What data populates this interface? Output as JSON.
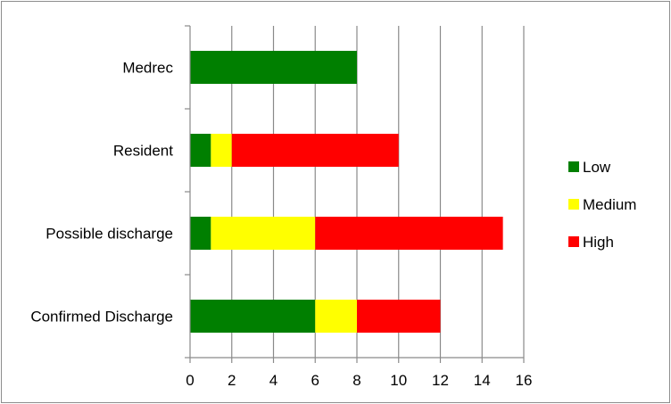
{
  "chart_data": {
    "type": "bar",
    "orientation": "horizontal",
    "stacked": true,
    "title": "",
    "xlabel": "",
    "ylabel": "",
    "categories": [
      "Medrec",
      "Resident",
      "Possible discharge",
      "Confirmed Discharge"
    ],
    "series": [
      {
        "name": "Low",
        "color": "#007f00",
        "values": [
          8,
          1,
          1,
          6
        ]
      },
      {
        "name": "Medium",
        "color": "#ffff00",
        "values": [
          0,
          1,
          5,
          2
        ]
      },
      {
        "name": "High",
        "color": "#ff0000",
        "values": [
          0,
          8,
          9,
          4
        ]
      }
    ],
    "xlim": [
      0,
      16
    ],
    "xticks": [
      "0",
      "2",
      "4",
      "6",
      "8",
      "10",
      "12",
      "14",
      "16"
    ],
    "grid": "vertical",
    "legend_position": "right"
  }
}
